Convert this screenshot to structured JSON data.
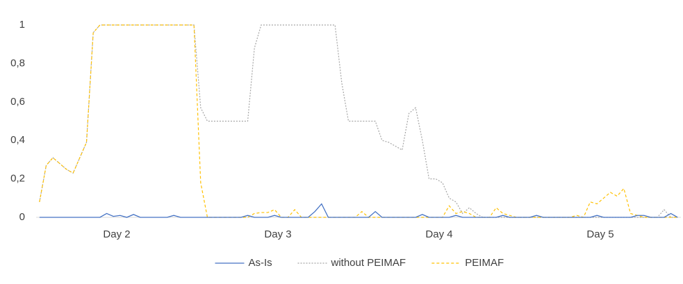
{
  "chart_data": {
    "type": "line",
    "x": [
      0,
      1,
      2,
      3,
      4,
      5,
      6,
      7,
      8,
      9,
      10,
      11,
      12,
      13,
      14,
      15,
      16,
      17,
      18,
      19,
      20,
      21,
      22,
      23,
      24,
      25,
      26,
      27,
      28,
      29,
      30,
      31,
      32,
      33,
      34,
      35,
      36,
      37,
      38,
      39,
      40,
      41,
      42,
      43,
      44,
      45,
      46,
      47,
      48,
      49,
      50,
      51,
      52,
      53,
      54,
      55,
      56,
      57,
      58,
      59,
      60,
      61,
      62,
      63,
      64,
      65,
      66,
      67,
      68,
      69,
      70,
      71,
      72,
      73,
      74,
      75,
      76,
      77,
      78,
      79,
      80,
      81,
      82,
      83,
      84,
      85,
      86,
      87,
      88,
      89,
      90,
      91,
      92,
      93,
      94,
      95
    ],
    "xlim": [
      -0.5,
      95.5
    ],
    "xticks": [
      {
        "value": 11.5,
        "label": "Day 2"
      },
      {
        "value": 35.5,
        "label": "Day 3"
      },
      {
        "value": 59.5,
        "label": "Day 4"
      },
      {
        "value": 83.5,
        "label": "Day 5"
      }
    ],
    "ylim": [
      0,
      1
    ],
    "yticks": [
      0,
      {
        "value": 0.2,
        "label": "0,2"
      },
      {
        "value": 0.4,
        "label": "0,4"
      },
      {
        "value": 0.6,
        "label": "0,6"
      },
      {
        "value": 0.8,
        "label": "0,8"
      },
      1
    ],
    "grid": false,
    "legend": "bottom",
    "series": [
      {
        "name": "As-Is",
        "color": "#4472c4",
        "style": "solid",
        "values": [
          0,
          0,
          0,
          0,
          0,
          0,
          0,
          0,
          0,
          0,
          0.02,
          0.005,
          0.01,
          0,
          0.015,
          0,
          0,
          0,
          0,
          0,
          0.01,
          0,
          0,
          0,
          0,
          0,
          0,
          0,
          0,
          0,
          0,
          0.01,
          0,
          0,
          0,
          0.01,
          0,
          0,
          0,
          0,
          0,
          0.03,
          0.07,
          0,
          0,
          0,
          0,
          0,
          0,
          0,
          0.03,
          0,
          0,
          0,
          0,
          0,
          0,
          0.015,
          0,
          0,
          0,
          0,
          0.01,
          0,
          0,
          0,
          0,
          0,
          0,
          0.01,
          0,
          0,
          0,
          0,
          0.01,
          0,
          0,
          0,
          0,
          0,
          0,
          0,
          0,
          0.01,
          0,
          0,
          0,
          0,
          0,
          0.01,
          0.01,
          0,
          0,
          0,
          0.02,
          0
        ]
      },
      {
        "name": "without PEIMAF",
        "color": "#a5a5a5",
        "style": "dotted",
        "values": [
          0.08,
          0.27,
          0.31,
          0.28,
          0.25,
          0.23,
          0.31,
          0.39,
          0.96,
          1,
          1,
          1,
          1,
          1,
          1,
          1,
          1,
          1,
          1,
          1,
          1,
          1,
          1,
          1,
          0.57,
          0.5,
          0.5,
          0.5,
          0.5,
          0.5,
          0.5,
          0.5,
          0.88,
          1,
          1,
          1,
          1,
          1,
          1,
          1,
          1,
          1,
          1,
          1,
          1,
          0.7,
          0.5,
          0.5,
          0.5,
          0.5,
          0.5,
          0.4,
          0.39,
          0.37,
          0.35,
          0.54,
          0.57,
          0.4,
          0.2,
          0.2,
          0.18,
          0.1,
          0.08,
          0.02,
          0.05,
          0.02,
          0,
          0,
          0,
          0,
          0,
          0,
          0,
          0,
          0,
          0,
          0,
          0,
          0,
          0,
          0,
          0,
          0,
          0,
          0,
          0,
          0,
          0,
          0,
          0,
          0,
          0,
          0,
          0.04,
          0,
          0
        ]
      },
      {
        "name": "PEIMAF",
        "color": "#ffc000",
        "style": "dashed",
        "values": [
          0.08,
          0.27,
          0.31,
          0.28,
          0.25,
          0.23,
          0.31,
          0.39,
          0.96,
          1,
          1,
          1,
          1,
          1,
          1,
          1,
          1,
          1,
          1,
          1,
          1,
          1,
          1,
          1,
          0.18,
          0,
          0,
          0,
          0,
          0,
          0,
          0,
          0.02,
          0.025,
          0.025,
          0.04,
          0,
          0,
          0.04,
          0,
          0,
          0,
          0,
          0,
          0,
          0,
          0,
          0,
          0.03,
          0,
          0,
          0,
          0,
          0,
          0,
          0,
          0,
          0,
          0,
          0,
          0,
          0.06,
          0.02,
          0.03,
          0.02,
          0,
          0,
          0,
          0.05,
          0.02,
          0.01,
          0,
          0,
          0,
          0,
          0,
          0,
          0,
          0,
          0,
          0.01,
          0,
          0.08,
          0.07,
          0.1,
          0.13,
          0.11,
          0.15,
          0.02,
          0.01,
          0,
          0,
          0,
          0,
          0,
          0
        ]
      }
    ]
  }
}
